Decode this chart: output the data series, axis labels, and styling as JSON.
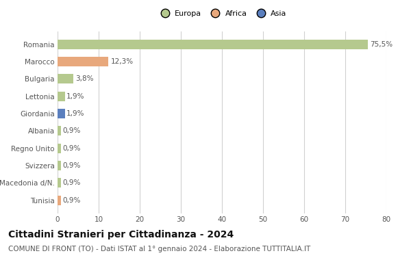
{
  "categories": [
    "Romania",
    "Marocco",
    "Bulgaria",
    "Lettonia",
    "Giordania",
    "Albania",
    "Regno Unito",
    "Svizzera",
    "Macedonia d/N.",
    "Tunisia"
  ],
  "values": [
    75.5,
    12.3,
    3.8,
    1.9,
    1.9,
    0.9,
    0.9,
    0.9,
    0.9,
    0.9
  ],
  "labels": [
    "75,5%",
    "12,3%",
    "3,8%",
    "1,9%",
    "1,9%",
    "0,9%",
    "0,9%",
    "0,9%",
    "0,9%",
    "0,9%"
  ],
  "colors": [
    "#b5c98e",
    "#e8a87c",
    "#b5c98e",
    "#b5c98e",
    "#5b7fbe",
    "#b5c98e",
    "#b5c98e",
    "#b5c98e",
    "#b5c98e",
    "#e8a87c"
  ],
  "legend_labels": [
    "Europa",
    "Africa",
    "Asia"
  ],
  "legend_colors": [
    "#b5c98e",
    "#e8a87c",
    "#5b7fbe"
  ],
  "title": "Cittadini Stranieri per Cittadinanza - 2024",
  "subtitle": "COMUNE DI FRONT (TO) - Dati ISTAT al 1° gennaio 2024 - Elaborazione TUTTITALIA.IT",
  "xlim": [
    0,
    80
  ],
  "xticks": [
    0,
    10,
    20,
    30,
    40,
    50,
    60,
    70,
    80
  ],
  "background_color": "#ffffff",
  "grid_color": "#d0d0d0",
  "bar_height": 0.55,
  "title_fontsize": 10,
  "subtitle_fontsize": 7.5,
  "label_fontsize": 7.5,
  "tick_fontsize": 7.5,
  "legend_fontsize": 8
}
